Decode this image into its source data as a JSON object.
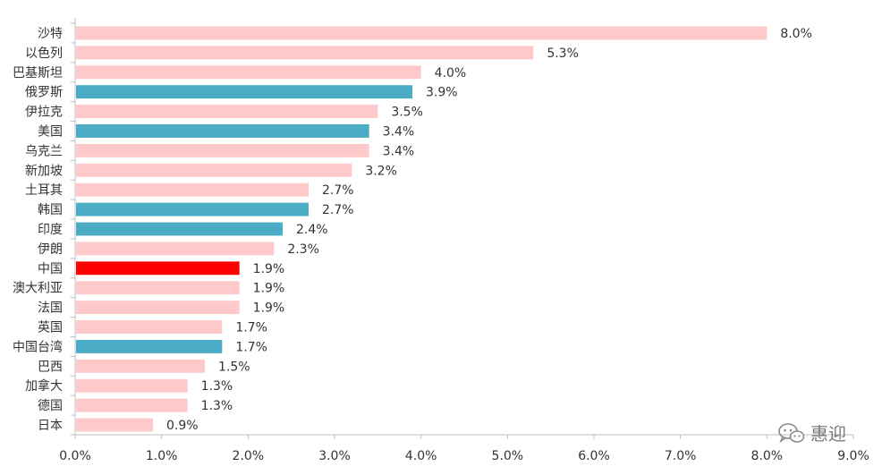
{
  "chart_data": {
    "type": "bar",
    "orientation": "horizontal",
    "categories": [
      "沙特",
      "以色列",
      "巴基斯坦",
      "俄罗斯",
      "伊拉克",
      "美国",
      "乌克兰",
      "新加坡",
      "土耳其",
      "韩国",
      "印度",
      "伊朗",
      "中国",
      "澳大利亚",
      "法国",
      "英国",
      "中国台湾",
      "巴西",
      "加拿大",
      "德国",
      "日本"
    ],
    "values": [
      8.0,
      5.3,
      4.0,
      3.9,
      3.5,
      3.4,
      3.4,
      3.2,
      2.7,
      2.7,
      2.4,
      2.3,
      1.9,
      1.9,
      1.9,
      1.7,
      1.7,
      1.5,
      1.3,
      1.3,
      0.9
    ],
    "value_labels": [
      "8.0%",
      "5.3%",
      "4.0%",
      "3.9%",
      "3.5%",
      "3.4%",
      "3.4%",
      "3.2%",
      "2.7%",
      "2.7%",
      "2.4%",
      "2.3%",
      "1.9%",
      "1.9%",
      "1.9%",
      "1.7%",
      "1.7%",
      "1.5%",
      "1.3%",
      "1.3%",
      "0.9%"
    ],
    "bar_colors": [
      "#ffc9c9",
      "#ffc9c9",
      "#ffc9c9",
      "#4bacc6",
      "#ffc9c9",
      "#4bacc6",
      "#ffc9c9",
      "#ffc9c9",
      "#ffc9c9",
      "#4bacc6",
      "#4bacc6",
      "#ffc9c9",
      "#ff0000",
      "#ffc9c9",
      "#ffc9c9",
      "#ffc9c9",
      "#4bacc6",
      "#ffc9c9",
      "#ffc9c9",
      "#ffc9c9",
      "#ffc9c9"
    ],
    "xlim": [
      0,
      9
    ],
    "xticks": [
      0,
      1,
      2,
      3,
      4,
      5,
      6,
      7,
      8,
      9
    ],
    "xtick_labels": [
      "0.0%",
      "1.0%",
      "2.0%",
      "3.0%",
      "4.0%",
      "5.0%",
      "6.0%",
      "7.0%",
      "8.0%",
      "9.0%"
    ],
    "title": "",
    "xlabel": "",
    "ylabel": "",
    "grid": false,
    "legend": "none"
  },
  "colors": {
    "pink": "#ffc9c9",
    "teal": "#4bacc6",
    "red": "#ff0000",
    "axis": "#bfbfbf",
    "text": "#333333"
  },
  "watermark": {
    "icon": "wechat-icon",
    "text": "惠迎"
  }
}
